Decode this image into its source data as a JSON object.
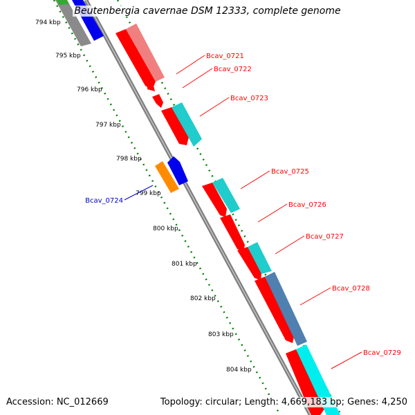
{
  "title": "Beutenbergia cavernae DSM 12333, complete genome",
  "accession": "Accession: NC_012669",
  "topology": "Topology: circular; Length: 4,669,183 bp; Genes: 4,250",
  "colors": {
    "backbone": "#808080",
    "tick": "#008000",
    "gene_label_forward": "#ff0000",
    "gene_label_reverse": "#0000cc"
  },
  "ticks": [
    {
      "label": "794 kbp",
      "kbp": 794
    },
    {
      "label": "795 kbp",
      "kbp": 795
    },
    {
      "label": "796 kbp",
      "kbp": 796
    },
    {
      "label": "797 kbp",
      "kbp": 797
    },
    {
      "label": "798 kbp",
      "kbp": 798
    },
    {
      "label": "799 kbp",
      "kbp": 799
    },
    {
      "label": "800 kbp",
      "kbp": 800
    },
    {
      "label": "801 kbp",
      "kbp": 801
    },
    {
      "label": "802 kbp",
      "kbp": 802
    },
    {
      "label": "803 kbp",
      "kbp": 803
    },
    {
      "label": "804 kbp",
      "kbp": 804
    }
  ],
  "genes": [
    {
      "name": "Bcav_0721",
      "strand": "forward"
    },
    {
      "name": "Bcav_0722",
      "strand": "forward"
    },
    {
      "name": "Bcav_0723",
      "strand": "forward"
    },
    {
      "name": "Bcav_0724",
      "strand": "reverse"
    },
    {
      "name": "Bcav_0725",
      "strand": "forward"
    },
    {
      "name": "Bcav_0726",
      "strand": "forward"
    },
    {
      "name": "Bcav_0727",
      "strand": "forward"
    },
    {
      "name": "Bcav_0728",
      "strand": "forward"
    },
    {
      "name": "Bcav_0729",
      "strand": "forward"
    }
  ]
}
